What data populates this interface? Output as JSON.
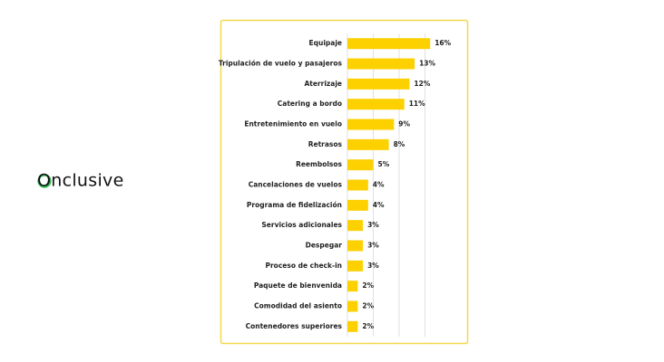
{
  "brand": "Onclusive",
  "chart_data": {
    "type": "barh",
    "categories": [
      "Equipaje",
      "Tripulación de vuelo y pasajeros",
      "Aterrizaje",
      "Catering a bordo",
      "Entretenimiento en vuelo",
      "Retrasos",
      "Reembolsos",
      "Cancelaciones de vuelos",
      "Programa de fidelización",
      "Servicios adicionales",
      "Despegar",
      "Proceso de check-in",
      "Paquete de bienvenida",
      "Comodidad del asiento",
      "Contenedores superiores"
    ],
    "values": [
      16,
      13,
      12,
      11,
      9,
      8,
      5,
      4,
      4,
      3,
      3,
      3,
      2,
      2,
      2
    ],
    "value_labels": [
      "16%",
      "13%",
      "12%",
      "11%",
      "9%",
      "8%",
      "5%",
      "4%",
      "4%",
      "3%",
      "3%",
      "3%",
      "2%",
      "2%",
      "2%"
    ],
    "color": "#fdd000",
    "xlim": [
      0,
      20
    ],
    "xticks": [
      0,
      5,
      10,
      15
    ],
    "grid": true
  }
}
